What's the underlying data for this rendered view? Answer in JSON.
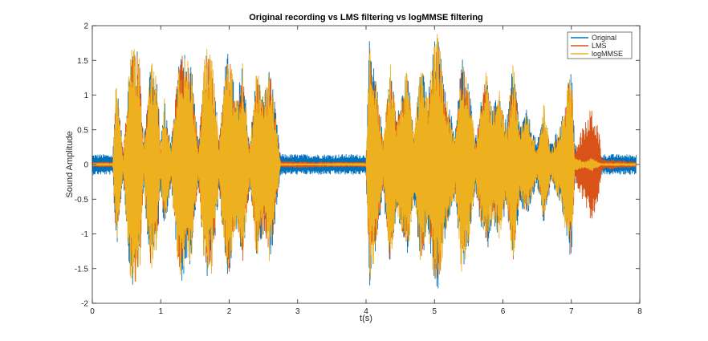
{
  "chart_data": {
    "type": "line",
    "title": "Original recording vs LMS filtering vs logMMSE filtering",
    "xlabel": "t(s)",
    "ylabel": "Sound Amplitude",
    "xlim": [
      0,
      8
    ],
    "ylim": [
      -2,
      2
    ],
    "x_ticks": [
      "0",
      "1",
      "2",
      "3",
      "4",
      "5",
      "6",
      "7",
      "8"
    ],
    "y_ticks": [
      "-2",
      "-1.5",
      "-1",
      "-0.5",
      "0",
      "0.5",
      "1",
      "1.5",
      "2"
    ],
    "grid": false,
    "legend_position": "top-right",
    "series": [
      {
        "name": "Original",
        "color": "#0072BD",
        "description": "waveform envelope (approx. peak amplitude vs time)",
        "envelope": [
          [
            0.0,
            0.15
          ],
          [
            0.3,
            0.15
          ],
          [
            0.35,
            1.3
          ],
          [
            0.45,
            0.2
          ],
          [
            0.55,
            1.6
          ],
          [
            0.6,
            1.85
          ],
          [
            0.7,
            1.5
          ],
          [
            0.75,
            0.3
          ],
          [
            0.85,
            1.6
          ],
          [
            0.95,
            1.2
          ],
          [
            1.0,
            0.3
          ],
          [
            1.05,
            1.0
          ],
          [
            1.15,
            0.3
          ],
          [
            1.25,
            1.5
          ],
          [
            1.3,
            1.7
          ],
          [
            1.45,
            1.4
          ],
          [
            1.55,
            0.3
          ],
          [
            1.65,
            1.7
          ],
          [
            1.75,
            1.6
          ],
          [
            1.85,
            0.4
          ],
          [
            1.95,
            1.5
          ],
          [
            2.0,
            1.7
          ],
          [
            2.1,
            0.9
          ],
          [
            2.2,
            1.5
          ],
          [
            2.3,
            0.3
          ],
          [
            2.4,
            1.4
          ],
          [
            2.5,
            1.0
          ],
          [
            2.6,
            1.45
          ],
          [
            2.7,
            0.6
          ],
          [
            2.75,
            0.15
          ],
          [
            3.5,
            0.15
          ],
          [
            4.0,
            0.15
          ],
          [
            4.05,
            1.8
          ],
          [
            4.15,
            1.2
          ],
          [
            4.25,
            0.4
          ],
          [
            4.35,
            1.5
          ],
          [
            4.45,
            0.7
          ],
          [
            4.6,
            1.4
          ],
          [
            4.7,
            0.5
          ],
          [
            4.8,
            1.5
          ],
          [
            4.9,
            1.0
          ],
          [
            5.0,
            1.8
          ],
          [
            5.05,
            1.9
          ],
          [
            5.15,
            1.1
          ],
          [
            5.3,
            0.5
          ],
          [
            5.4,
            1.6
          ],
          [
            5.5,
            1.2
          ],
          [
            5.6,
            0.4
          ],
          [
            5.75,
            1.4
          ],
          [
            5.85,
            0.8
          ],
          [
            5.95,
            1.1
          ],
          [
            6.05,
            0.6
          ],
          [
            6.15,
            1.5
          ],
          [
            6.25,
            0.6
          ],
          [
            6.35,
            0.8
          ],
          [
            6.5,
            0.3
          ],
          [
            6.6,
            0.9
          ],
          [
            6.7,
            0.3
          ],
          [
            6.85,
            0.6
          ],
          [
            6.95,
            1.2
          ],
          [
            7.0,
            1.5
          ],
          [
            7.05,
            0.3
          ],
          [
            7.15,
            0.2
          ],
          [
            7.3,
            0.3
          ],
          [
            7.45,
            0.15
          ],
          [
            7.95,
            0.15
          ]
        ]
      },
      {
        "name": "LMS",
        "color": "#D95319",
        "description": "waveform envelope (approx. peak amplitude vs time)",
        "envelope": [
          [
            0.0,
            0.04
          ],
          [
            0.3,
            0.04
          ],
          [
            0.35,
            1.2
          ],
          [
            0.45,
            0.15
          ],
          [
            0.55,
            1.5
          ],
          [
            0.6,
            1.8
          ],
          [
            0.7,
            1.4
          ],
          [
            0.75,
            0.25
          ],
          [
            0.85,
            1.5
          ],
          [
            0.95,
            1.1
          ],
          [
            1.0,
            0.25
          ],
          [
            1.05,
            0.9
          ],
          [
            1.15,
            0.25
          ],
          [
            1.25,
            1.4
          ],
          [
            1.3,
            1.6
          ],
          [
            1.45,
            1.3
          ],
          [
            1.55,
            0.25
          ],
          [
            1.65,
            1.6
          ],
          [
            1.75,
            1.5
          ],
          [
            1.85,
            0.3
          ],
          [
            1.95,
            1.4
          ],
          [
            2.0,
            1.6
          ],
          [
            2.1,
            0.8
          ],
          [
            2.2,
            1.4
          ],
          [
            2.3,
            0.25
          ],
          [
            2.4,
            1.3
          ],
          [
            2.5,
            0.9
          ],
          [
            2.6,
            1.35
          ],
          [
            2.7,
            0.5
          ],
          [
            2.75,
            0.05
          ],
          [
            3.5,
            0.04
          ],
          [
            4.0,
            0.04
          ],
          [
            4.05,
            1.7
          ],
          [
            4.15,
            1.1
          ],
          [
            4.25,
            0.3
          ],
          [
            4.35,
            1.4
          ],
          [
            4.45,
            0.6
          ],
          [
            4.6,
            1.3
          ],
          [
            4.7,
            0.4
          ],
          [
            4.8,
            1.4
          ],
          [
            4.9,
            0.9
          ],
          [
            5.0,
            1.7
          ],
          [
            5.05,
            1.8
          ],
          [
            5.15,
            1.0
          ],
          [
            5.3,
            0.4
          ],
          [
            5.4,
            1.5
          ],
          [
            5.5,
            1.1
          ],
          [
            5.6,
            0.3
          ],
          [
            5.75,
            1.3
          ],
          [
            5.85,
            0.7
          ],
          [
            5.95,
            1.0
          ],
          [
            6.05,
            0.5
          ],
          [
            6.15,
            1.4
          ],
          [
            6.25,
            0.5
          ],
          [
            6.35,
            0.7
          ],
          [
            6.5,
            0.2
          ],
          [
            6.6,
            0.8
          ],
          [
            6.7,
            0.2
          ],
          [
            6.85,
            0.5
          ],
          [
            6.95,
            1.1
          ],
          [
            7.0,
            1.4
          ],
          [
            7.05,
            0.2
          ],
          [
            7.1,
            0.4
          ],
          [
            7.2,
            0.6
          ],
          [
            7.3,
            0.85
          ],
          [
            7.4,
            0.5
          ],
          [
            7.45,
            0.08
          ],
          [
            7.95,
            0.04
          ]
        ]
      },
      {
        "name": "logMMSE",
        "color": "#EDB120",
        "description": "waveform envelope (approx. peak amplitude vs time)",
        "envelope": [
          [
            0.0,
            0.01
          ],
          [
            0.3,
            0.01
          ],
          [
            0.35,
            1.3
          ],
          [
            0.45,
            0.1
          ],
          [
            0.55,
            1.6
          ],
          [
            0.6,
            1.85
          ],
          [
            0.7,
            1.5
          ],
          [
            0.75,
            0.2
          ],
          [
            0.85,
            1.6
          ],
          [
            0.95,
            1.2
          ],
          [
            1.0,
            0.2
          ],
          [
            1.05,
            1.0
          ],
          [
            1.15,
            0.2
          ],
          [
            1.25,
            1.5
          ],
          [
            1.3,
            1.7
          ],
          [
            1.45,
            1.4
          ],
          [
            1.55,
            0.2
          ],
          [
            1.65,
            1.7
          ],
          [
            1.75,
            1.6
          ],
          [
            1.85,
            0.3
          ],
          [
            1.95,
            1.5
          ],
          [
            2.0,
            1.7
          ],
          [
            2.1,
            0.9
          ],
          [
            2.2,
            1.5
          ],
          [
            2.3,
            0.2
          ],
          [
            2.4,
            1.4
          ],
          [
            2.5,
            1.0
          ],
          [
            2.6,
            1.45
          ],
          [
            2.7,
            0.5
          ],
          [
            2.75,
            0.02
          ],
          [
            3.5,
            0.01
          ],
          [
            4.0,
            0.01
          ],
          [
            4.05,
            1.8
          ],
          [
            4.15,
            1.2
          ],
          [
            4.25,
            0.3
          ],
          [
            4.35,
            1.5
          ],
          [
            4.45,
            0.7
          ],
          [
            4.6,
            1.4
          ],
          [
            4.7,
            0.5
          ],
          [
            4.8,
            1.5
          ],
          [
            4.9,
            1.0
          ],
          [
            5.0,
            1.8
          ],
          [
            5.05,
            1.95
          ],
          [
            5.15,
            1.1
          ],
          [
            5.3,
            0.4
          ],
          [
            5.4,
            1.6
          ],
          [
            5.5,
            1.2
          ],
          [
            5.6,
            0.3
          ],
          [
            5.75,
            1.4
          ],
          [
            5.85,
            0.8
          ],
          [
            5.95,
            1.1
          ],
          [
            6.05,
            0.5
          ],
          [
            6.15,
            1.5
          ],
          [
            6.25,
            0.5
          ],
          [
            6.35,
            0.8
          ],
          [
            6.5,
            0.2
          ],
          [
            6.6,
            0.9
          ],
          [
            6.7,
            0.2
          ],
          [
            6.85,
            0.6
          ],
          [
            6.95,
            1.2
          ],
          [
            7.0,
            1.5
          ],
          [
            7.05,
            0.1
          ],
          [
            7.2,
            0.05
          ],
          [
            7.3,
            0.1
          ],
          [
            7.45,
            0.01
          ],
          [
            7.95,
            0.01
          ]
        ]
      }
    ]
  }
}
